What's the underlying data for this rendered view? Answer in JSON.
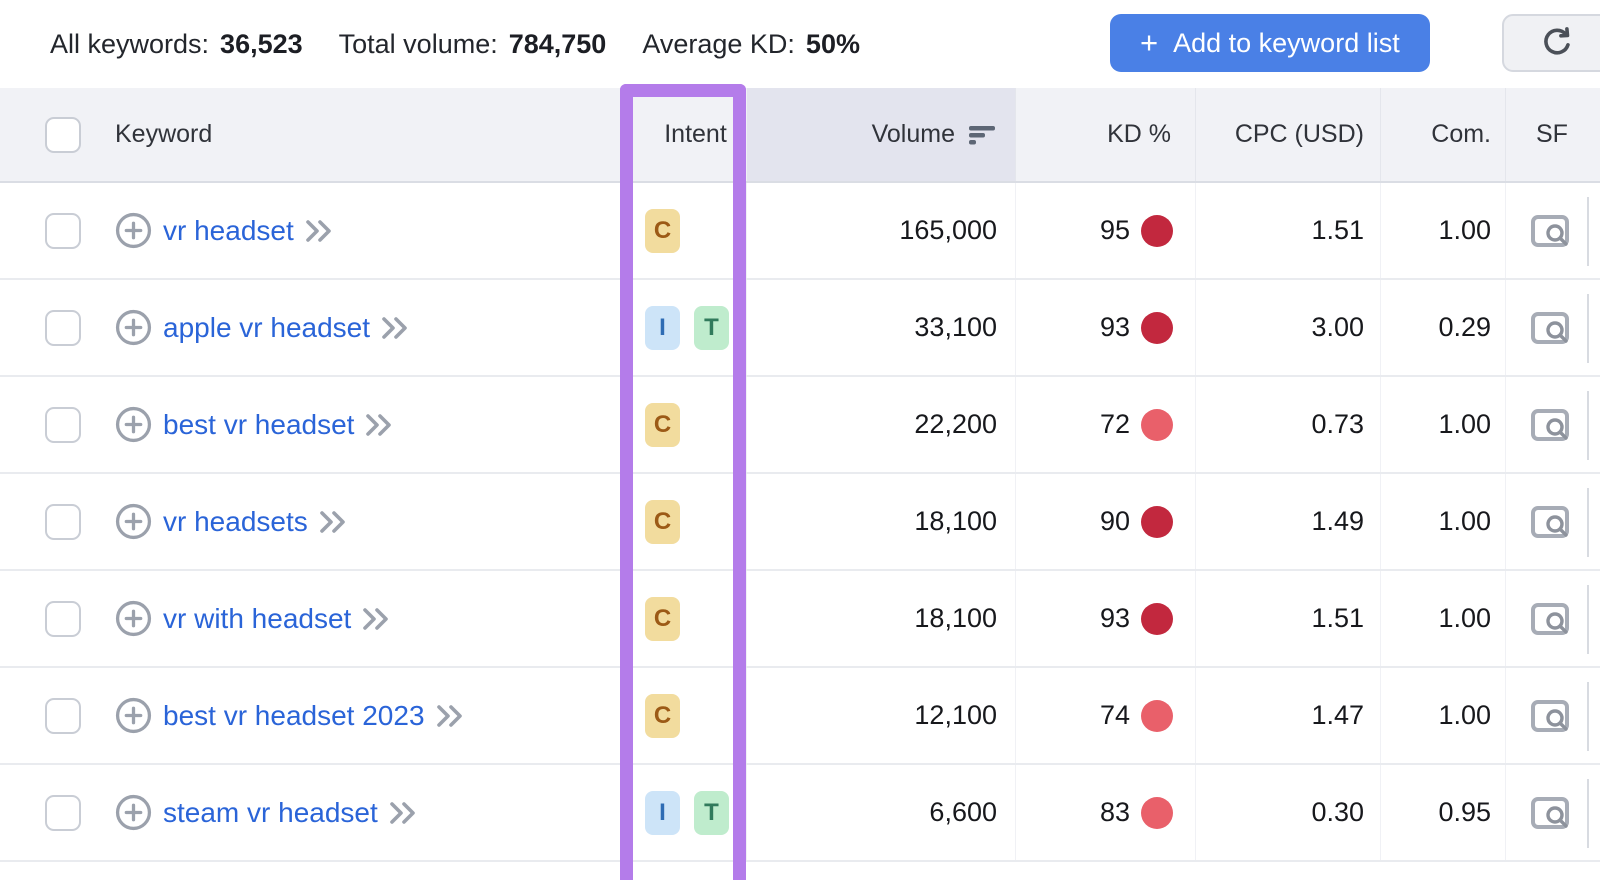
{
  "toolbar": {
    "stats": [
      {
        "label": "All keywords:",
        "value": "36,523"
      },
      {
        "label": "Total volume:",
        "value": "784,750"
      },
      {
        "label": "Average KD:",
        "value": "50%"
      }
    ],
    "add_button": {
      "plus": "+",
      "label": "Add to keyword list"
    },
    "refresh_icon": "refresh-icon"
  },
  "table": {
    "columns": {
      "keyword": "Keyword",
      "intent": "Intent",
      "volume": "Volume",
      "kd": "KD %",
      "cpc": "CPC (USD)",
      "com": "Com.",
      "sf": "SF"
    },
    "sorted_column": "volume",
    "rows": [
      {
        "keyword": "vr headset",
        "intents": [
          "C"
        ],
        "volume": "165,000",
        "kd": "95",
        "kd_level": "high",
        "cpc": "1.51",
        "com": "1.00"
      },
      {
        "keyword": "apple vr headset",
        "intents": [
          "I",
          "T"
        ],
        "volume": "33,100",
        "kd": "93",
        "kd_level": "high",
        "cpc": "3.00",
        "com": "0.29"
      },
      {
        "keyword": "best vr headset",
        "intents": [
          "C"
        ],
        "volume": "22,200",
        "kd": "72",
        "kd_level": "mid",
        "cpc": "0.73",
        "com": "1.00"
      },
      {
        "keyword": "vr headsets",
        "intents": [
          "C"
        ],
        "volume": "18,100",
        "kd": "90",
        "kd_level": "high",
        "cpc": "1.49",
        "com": "1.00"
      },
      {
        "keyword": "vr with headset",
        "intents": [
          "C"
        ],
        "volume": "18,100",
        "kd": "93",
        "kd_level": "high",
        "cpc": "1.51",
        "com": "1.00"
      },
      {
        "keyword": "best vr headset 2023",
        "intents": [
          "C"
        ],
        "volume": "12,100",
        "kd": "74",
        "kd_level": "mid",
        "cpc": "1.47",
        "com": "1.00"
      },
      {
        "keyword": "steam vr headset",
        "intents": [
          "I",
          "T"
        ],
        "volume": "6,600",
        "kd": "83",
        "kd_level": "mid",
        "cpc": "0.30",
        "com": "0.95"
      }
    ]
  },
  "intent_badges": {
    "C": {
      "label": "C",
      "bg": "#f2dc9e",
      "fg": "#9c5a16"
    },
    "I": {
      "label": "I",
      "bg": "#cde4f8",
      "fg": "#2e6cb4"
    },
    "T": {
      "label": "T",
      "bg": "#bfeccd",
      "fg": "#317a5c"
    }
  },
  "colors": {
    "highlight_box": "#b47cea",
    "kd_dot_high": "#c2283e",
    "kd_dot_mid": "#e9606a",
    "add_button_bg": "#4a80e6",
    "keyword_link": "#2a64d8"
  }
}
